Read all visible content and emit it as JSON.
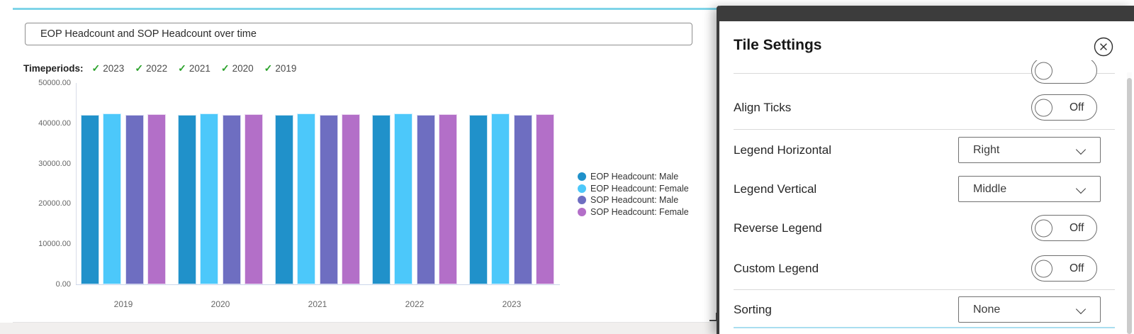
{
  "card": {
    "title_value": "EOP Headcount and SOP Headcount over time",
    "timeperiods_label": "Timeperiods:",
    "timeperiods": [
      {
        "label": "2023",
        "checked": true
      },
      {
        "label": "2022",
        "checked": true
      },
      {
        "label": "2021",
        "checked": true
      },
      {
        "label": "2020",
        "checked": true
      },
      {
        "label": "2019",
        "checked": true
      }
    ]
  },
  "chart_data": {
    "type": "bar",
    "title": "",
    "xlabel": "",
    "ylabel": "",
    "categories": [
      "2019",
      "2020",
      "2021",
      "2022",
      "2023"
    ],
    "series": [
      {
        "name": "EOP Headcount: Male",
        "color": "#2091ca",
        "values": [
          42000,
          42000,
          42000,
          42000,
          42000
        ]
      },
      {
        "name": "EOP Headcount: Female",
        "color": "#4cc8fa",
        "values": [
          42400,
          42400,
          42400,
          42400,
          42400
        ]
      },
      {
        "name": "SOP Headcount: Male",
        "color": "#6e6ec1",
        "values": [
          42050,
          42050,
          42050,
          42050,
          42050
        ]
      },
      {
        "name": "SOP Headcount: Female",
        "color": "#b36fc8",
        "values": [
          42300,
          42300,
          42300,
          42300,
          42300
        ]
      }
    ],
    "ylim": [
      0,
      50000
    ],
    "ytick_labels": [
      "50000.00",
      "40000.00",
      "30000.00",
      "20000.00",
      "10000.00",
      "0.00"
    ],
    "legend_position": "right-middle",
    "grid": false
  },
  "panel": {
    "title": "Tile Settings",
    "close_icon": "circle-x-icon",
    "rows": [
      {
        "label": "Align Ticks",
        "control": "toggle",
        "value": "Off"
      },
      {
        "label": "Legend Horizontal",
        "control": "dropdown",
        "value": "Right"
      },
      {
        "label": "Legend Vertical",
        "control": "dropdown",
        "value": "Middle"
      },
      {
        "label": "Reverse Legend",
        "control": "toggle",
        "value": "Off"
      },
      {
        "label": "Custom Legend",
        "control": "toggle",
        "value": "Off"
      },
      {
        "label": "Sorting",
        "control": "dropdown",
        "value": "None"
      }
    ],
    "scrolled_partial_toggle": true
  },
  "colors": {
    "accent_cyan": "#7fd4e8",
    "panel_dark": "#3c3c3c",
    "check_green": "#2aa22a"
  }
}
